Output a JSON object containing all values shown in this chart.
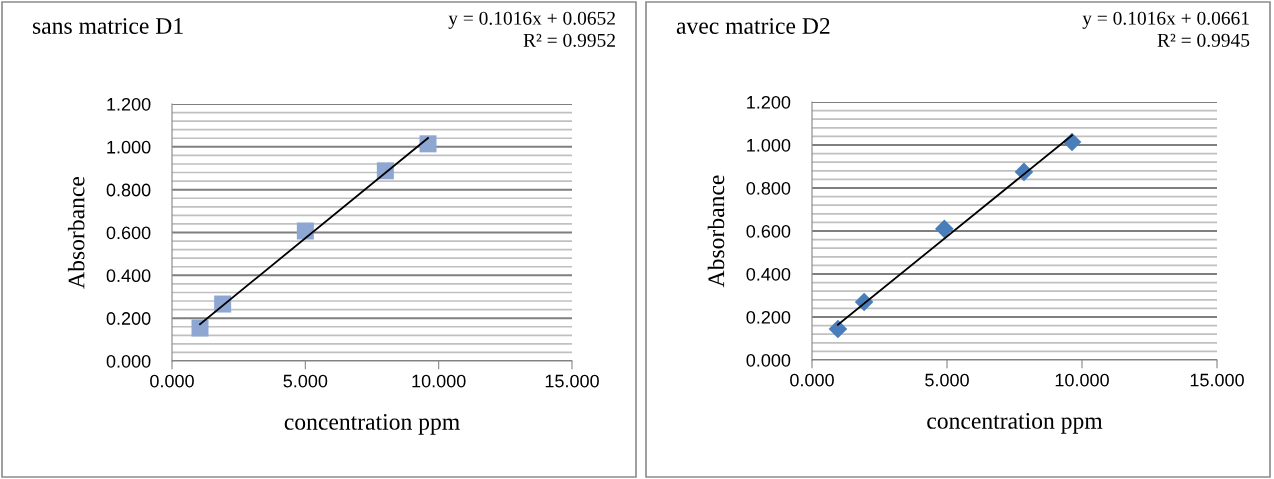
{
  "chart_data": [
    {
      "type": "scatter",
      "title": "sans matrice D1",
      "xlabel": "concentration ppm",
      "ylabel": "Absorbance",
      "annotations": [
        "y = 0.1016x + 0.0652",
        "R² = 0.9952"
      ],
      "xlim": [
        0,
        15
      ],
      "xticks": [
        {
          "value": 0,
          "label": "0.000"
        },
        {
          "value": 5,
          "label": "5.000"
        },
        {
          "value": 10,
          "label": "10.000"
        },
        {
          "value": 15,
          "label": "15.000"
        }
      ],
      "ylim": [
        0,
        1.2
      ],
      "yticks": [
        {
          "value": 0,
          "label": "0.000"
        },
        {
          "value": 0.04,
          "label": null
        },
        {
          "value": 0.08,
          "label": null
        },
        {
          "value": 0.12,
          "label": null
        },
        {
          "value": 0.16,
          "label": null
        },
        {
          "value": 0.2,
          "label": "0.200"
        },
        {
          "value": 0.24,
          "label": null
        },
        {
          "value": 0.28,
          "label": null
        },
        {
          "value": 0.32,
          "label": null
        },
        {
          "value": 0.36,
          "label": null
        },
        {
          "value": 0.4,
          "label": "0.400"
        },
        {
          "value": 0.44,
          "label": null
        },
        {
          "value": 0.48,
          "label": null
        },
        {
          "value": 0.52,
          "label": null
        },
        {
          "value": 0.56,
          "label": null
        },
        {
          "value": 0.6,
          "label": "0.600"
        },
        {
          "value": 0.64,
          "label": null
        },
        {
          "value": 0.68,
          "label": null
        },
        {
          "value": 0.72,
          "label": null
        },
        {
          "value": 0.76,
          "label": null
        },
        {
          "value": 0.8,
          "label": "0.800"
        },
        {
          "value": 0.84,
          "label": null
        },
        {
          "value": 0.88,
          "label": null
        },
        {
          "value": 0.92,
          "label": null
        },
        {
          "value": 0.96,
          "label": null
        },
        {
          "value": 1.0,
          "label": "1.000"
        },
        {
          "value": 1.04,
          "label": null
        },
        {
          "value": 1.08,
          "label": null
        },
        {
          "value": 1.12,
          "label": null
        },
        {
          "value": 1.16,
          "label": null
        },
        {
          "value": 1.2,
          "label": "1.200"
        }
      ],
      "grid": "y",
      "series": [
        {
          "type": "scatter",
          "marker": "square",
          "color": "#8ea6d2",
          "x": [
            1.05,
            1.9,
            5.0,
            8.0,
            9.6
          ],
          "values": [
            0.154,
            0.266,
            0.607,
            0.888,
            1.014
          ]
        },
        {
          "type": "line",
          "marker": "none",
          "color": "#000000",
          "x": [
            1.05,
            9.6
          ],
          "values": [
            0.172,
            1.041
          ]
        }
      ]
    },
    {
      "type": "scatter",
      "title": "avec matrice D2",
      "xlabel": "concentration ppm",
      "ylabel": "Absorbance",
      "annotations": [
        "y = 0.1016x + 0.0661",
        "R² = 0.9945"
      ],
      "xlim": [
        0,
        15
      ],
      "xticks": [
        {
          "value": 0,
          "label": "0.000"
        },
        {
          "value": 5,
          "label": "5.000"
        },
        {
          "value": 10,
          "label": "10.000"
        },
        {
          "value": 15,
          "label": "15.000"
        }
      ],
      "ylim": [
        0,
        1.2
      ],
      "yticks": [
        {
          "value": 0,
          "label": "0.000"
        },
        {
          "value": 0.04,
          "label": null
        },
        {
          "value": 0.08,
          "label": null
        },
        {
          "value": 0.12,
          "label": null
        },
        {
          "value": 0.16,
          "label": null
        },
        {
          "value": 0.2,
          "label": "0.200"
        },
        {
          "value": 0.24,
          "label": null
        },
        {
          "value": 0.28,
          "label": null
        },
        {
          "value": 0.32,
          "label": null
        },
        {
          "value": 0.36,
          "label": null
        },
        {
          "value": 0.4,
          "label": "0.400"
        },
        {
          "value": 0.44,
          "label": null
        },
        {
          "value": 0.48,
          "label": null
        },
        {
          "value": 0.52,
          "label": null
        },
        {
          "value": 0.56,
          "label": null
        },
        {
          "value": 0.6,
          "label": "0.600"
        },
        {
          "value": 0.64,
          "label": null
        },
        {
          "value": 0.68,
          "label": null
        },
        {
          "value": 0.72,
          "label": null
        },
        {
          "value": 0.76,
          "label": null
        },
        {
          "value": 0.8,
          "label": "0.800"
        },
        {
          "value": 0.84,
          "label": null
        },
        {
          "value": 0.88,
          "label": null
        },
        {
          "value": 0.92,
          "label": null
        },
        {
          "value": 0.96,
          "label": null
        },
        {
          "value": 1.0,
          "label": "1.000"
        },
        {
          "value": 1.04,
          "label": null
        },
        {
          "value": 1.08,
          "label": null
        },
        {
          "value": 1.12,
          "label": null
        },
        {
          "value": 1.16,
          "label": null
        },
        {
          "value": 1.2,
          "label": "1.200"
        }
      ],
      "grid": "y",
      "series": [
        {
          "type": "scatter",
          "marker": "diamond",
          "color": "#4a7ebb",
          "x": [
            0.96,
            1.93,
            4.9,
            7.85,
            9.63
          ],
          "values": [
            0.144,
            0.27,
            0.61,
            0.875,
            1.014
          ]
        },
        {
          "type": "line",
          "marker": "none",
          "color": "#000000",
          "x": [
            0.96,
            9.63
          ],
          "values": [
            0.164,
            1.045
          ]
        }
      ]
    }
  ]
}
